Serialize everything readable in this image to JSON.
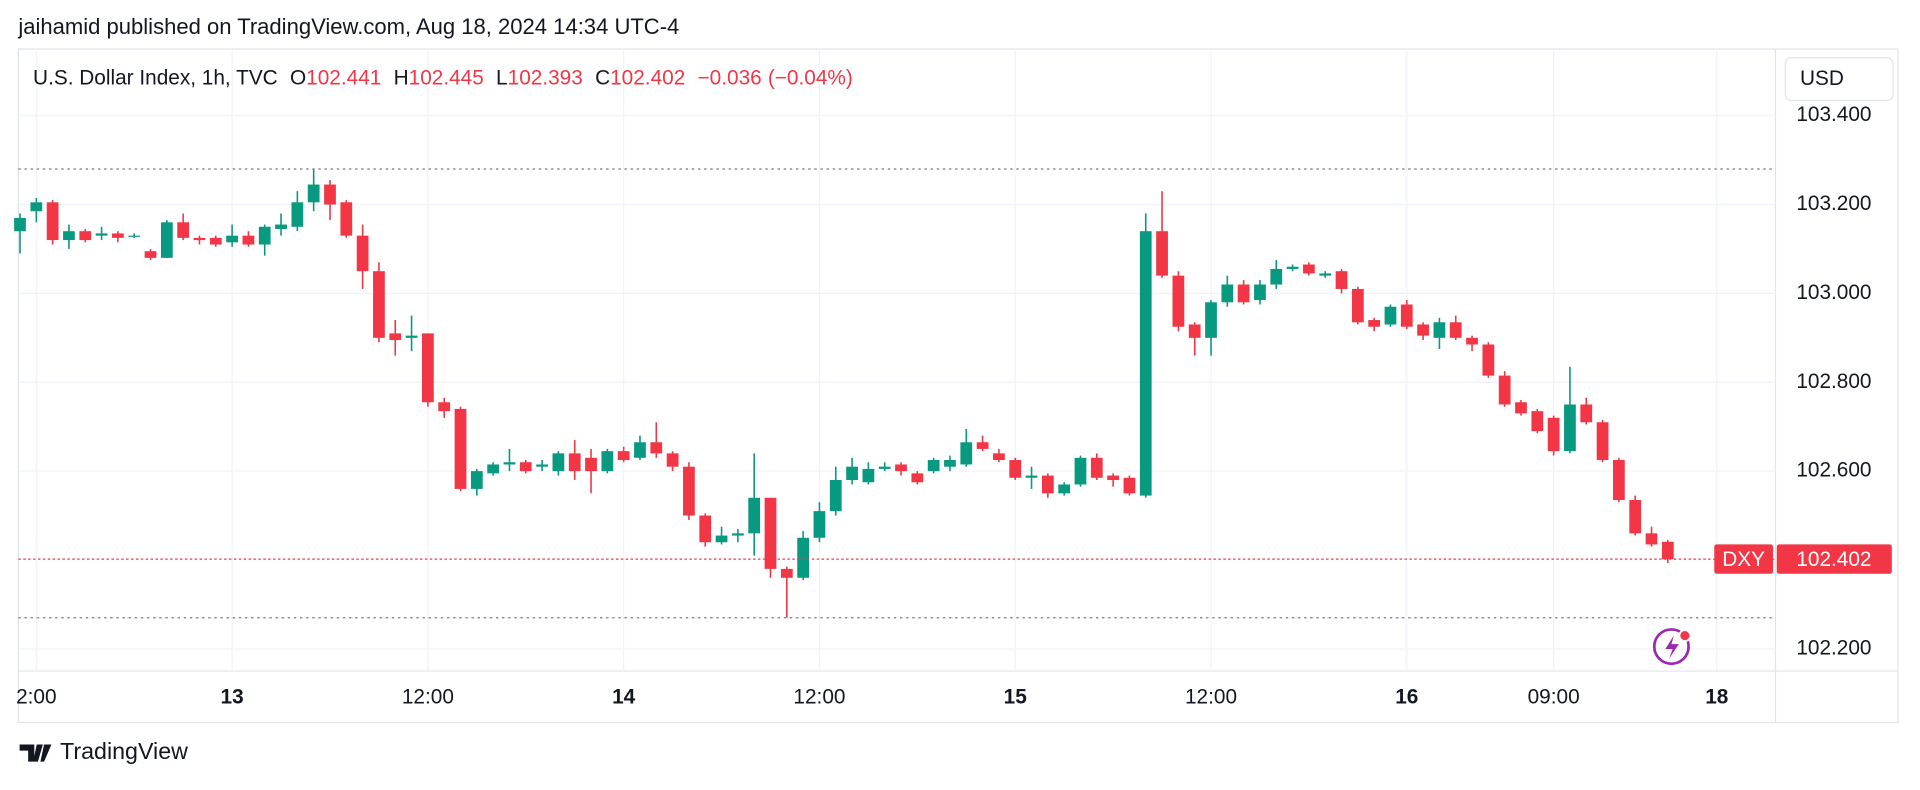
{
  "attribution": "jaihamid published on TradingView.com, Aug 18, 2024 14:34 UTC-4",
  "brand": "TradingView",
  "chart_data": {
    "type": "candlestick",
    "legend": {
      "symbol": "U.S. Dollar Index, 1h, TVC",
      "ohlc": [
        {
          "label": "O",
          "value": 102.441
        },
        {
          "label": "H",
          "value": 102.445
        },
        {
          "label": "L",
          "value": 102.393
        },
        {
          "label": "C",
          "value": 102.402
        }
      ],
      "change": {
        "value": -0.036,
        "label": "−0.036"
      },
      "change_pct": {
        "value": -0.04,
        "label": "(−0.04%)"
      }
    },
    "currency": "USD",
    "last_price": {
      "ticker": "DXY",
      "value": 102.402
    },
    "up_color": "#089981",
    "down_color": "#f23645",
    "series": {
      "open": [
        103.14,
        103.185,
        103.205,
        103.12,
        103.14,
        103.13,
        103.135,
        103.13,
        103.095,
        103.08,
        103.16,
        103.125,
        103.125,
        103.115,
        103.13,
        103.11,
        103.145,
        103.15,
        103.205,
        103.245,
        103.205,
        103.13,
        103.05,
        102.91,
        102.9,
        102.91,
        102.755,
        102.74,
        102.56,
        102.595,
        102.615,
        102.62,
        102.61,
        102.6,
        102.64,
        102.63,
        102.6,
        102.645,
        102.63,
        102.665,
        102.64,
        102.61,
        102.5,
        102.44,
        102.455,
        102.46,
        102.54,
        102.38,
        102.36,
        102.45,
        102.51,
        102.58,
        102.575,
        102.605,
        102.615,
        102.595,
        102.6,
        102.61,
        102.615,
        102.665,
        102.64,
        102.625,
        102.585,
        102.59,
        102.55,
        102.57,
        102.63,
        102.59,
        102.585,
        102.545,
        103.14,
        103.04,
        102.93,
        102.9,
        102.98,
        103.02,
        102.985,
        103.02,
        103.055,
        103.065,
        103.04,
        103.05,
        103.01,
        102.94,
        102.93,
        102.975,
        102.93,
        102.9,
        102.935,
        102.9,
        102.885,
        102.815,
        102.755,
        102.735,
        102.72,
        102.645,
        102.75,
        102.71,
        102.625,
        102.535,
        102.46,
        102.441
      ],
      "high": [
        103.18,
        103.215,
        103.21,
        103.155,
        103.145,
        103.15,
        103.14,
        103.135,
        103.1,
        103.165,
        103.18,
        103.13,
        103.13,
        103.155,
        103.14,
        103.155,
        103.18,
        103.23,
        103.28,
        103.255,
        103.21,
        103.155,
        103.07,
        102.94,
        102.95,
        102.91,
        102.765,
        102.745,
        102.605,
        102.62,
        102.65,
        102.625,
        102.625,
        102.645,
        102.67,
        102.65,
        102.65,
        102.655,
        102.68,
        102.71,
        102.645,
        102.62,
        102.505,
        102.475,
        102.47,
        102.64,
        102.54,
        102.385,
        102.465,
        102.53,
        102.61,
        102.63,
        102.62,
        102.62,
        102.62,
        102.6,
        102.63,
        102.635,
        102.695,
        102.68,
        102.65,
        102.63,
        102.61,
        102.595,
        102.575,
        102.635,
        102.64,
        102.595,
        102.59,
        103.18,
        103.23,
        103.05,
        102.935,
        102.985,
        103.04,
        103.03,
        103.03,
        103.075,
        103.065,
        103.07,
        103.05,
        103.055,
        103.015,
        102.945,
        102.975,
        102.985,
        102.935,
        102.945,
        102.95,
        102.905,
        102.89,
        102.825,
        102.76,
        102.74,
        102.725,
        102.835,
        102.765,
        102.715,
        102.63,
        102.545,
        102.475,
        102.445
      ],
      "low": [
        103.09,
        103.16,
        103.11,
        103.1,
        103.115,
        103.12,
        103.115,
        103.125,
        103.075,
        103.08,
        103.12,
        103.11,
        103.105,
        103.105,
        103.105,
        103.085,
        103.13,
        103.14,
        103.185,
        103.165,
        103.125,
        103.01,
        102.89,
        102.86,
        102.87,
        102.745,
        102.72,
        102.555,
        102.545,
        102.59,
        102.6,
        102.595,
        102.6,
        102.59,
        102.58,
        102.55,
        102.595,
        102.62,
        102.625,
        102.63,
        102.6,
        102.49,
        102.43,
        102.435,
        102.44,
        102.41,
        102.36,
        102.27,
        102.355,
        102.44,
        102.5,
        102.57,
        102.57,
        102.6,
        102.59,
        102.57,
        102.595,
        102.6,
        102.61,
        102.645,
        102.62,
        102.58,
        102.56,
        102.54,
        102.545,
        102.565,
        102.58,
        102.565,
        102.545,
        102.54,
        103.035,
        102.915,
        102.86,
        102.86,
        102.97,
        102.975,
        102.975,
        103.01,
        103.05,
        103.04,
        103.035,
        103.0,
        102.93,
        102.915,
        102.925,
        102.92,
        102.895,
        102.875,
        102.895,
        102.87,
        102.81,
        102.745,
        102.725,
        102.685,
        102.635,
        102.64,
        102.705,
        102.62,
        102.53,
        102.455,
        102.43,
        102.393
      ],
      "close": [
        103.17,
        103.205,
        103.12,
        103.14,
        103.12,
        103.135,
        103.125,
        103.13,
        103.08,
        103.16,
        103.125,
        103.12,
        103.11,
        103.13,
        103.11,
        103.15,
        103.155,
        103.205,
        103.245,
        103.2,
        103.13,
        103.05,
        102.9,
        102.895,
        102.905,
        102.755,
        102.735,
        102.56,
        102.6,
        102.615,
        102.62,
        102.6,
        102.615,
        102.64,
        102.6,
        102.6,
        102.645,
        102.625,
        102.665,
        102.64,
        102.61,
        102.5,
        102.44,
        102.455,
        102.46,
        102.54,
        102.38,
        102.36,
        102.45,
        102.51,
        102.58,
        102.61,
        102.605,
        102.61,
        102.6,
        102.575,
        102.625,
        102.625,
        102.665,
        102.65,
        102.625,
        102.585,
        102.59,
        102.55,
        102.57,
        102.63,
        102.585,
        102.58,
        102.55,
        103.14,
        103.04,
        102.925,
        102.9,
        102.98,
        103.02,
        102.98,
        103.02,
        103.055,
        103.06,
        103.045,
        103.045,
        103.01,
        102.935,
        102.925,
        102.97,
        102.925,
        102.905,
        102.935,
        102.9,
        102.885,
        102.815,
        102.75,
        102.73,
        102.69,
        102.645,
        102.75,
        102.71,
        102.625,
        102.535,
        102.46,
        102.435,
        102.402
      ]
    },
    "ylim": [
      102.15,
      103.55
    ],
    "yticks": [
      {
        "value": 102.2,
        "label": "102.200"
      },
      {
        "value": 102.6,
        "label": "102.600"
      },
      {
        "value": 102.8,
        "label": "102.800"
      },
      {
        "value": 103.0,
        "label": "103.000"
      },
      {
        "value": 103.2,
        "label": "103.200"
      },
      {
        "value": 103.4,
        "label": "103.400"
      }
    ],
    "xlim": [
      -0.1,
      107.6
    ],
    "xticks": [
      {
        "value": 1,
        "label": "2:00"
      },
      {
        "value": 13,
        "label": "13"
      },
      {
        "value": 25,
        "label": "12:00"
      },
      {
        "value": 37,
        "label": "14"
      },
      {
        "value": 49,
        "label": "12:00"
      },
      {
        "value": 61,
        "label": "15"
      },
      {
        "value": 73,
        "label": "12:00"
      },
      {
        "value": 85,
        "label": "16"
      },
      {
        "value": 94,
        "label": "09:00"
      },
      {
        "value": 104,
        "label": "18"
      }
    ],
    "grid": true
  }
}
